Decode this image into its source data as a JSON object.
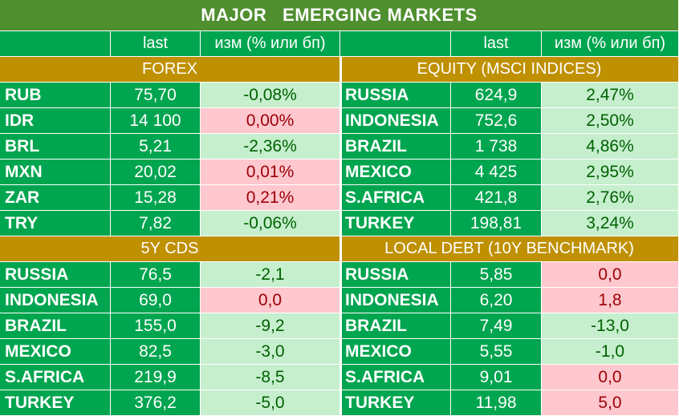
{
  "title": "MAJOR   EMERGING MARKETS",
  "col_headers": {
    "left": {
      "c1": "",
      "c2": "last",
      "c3": "изм (% или бп)"
    },
    "right": {
      "c1": "",
      "c2": "last",
      "c3": "изм (% или бп)"
    }
  },
  "sections": {
    "forex": {
      "title": "FOREX",
      "rows": [
        {
          "name": "RUB",
          "last": "75,70",
          "change": "-0,08%",
          "style": "pos"
        },
        {
          "name": "IDR",
          "last": "14 100",
          "change": "0,00%",
          "style": "neg"
        },
        {
          "name": "BRL",
          "last": "5,21",
          "change": "-2,36%",
          "style": "pos"
        },
        {
          "name": "MXN",
          "last": "20,02",
          "change": "0,01%",
          "style": "neg"
        },
        {
          "name": "ZAR",
          "last": "15,28",
          "change": "0,21%",
          "style": "neg"
        },
        {
          "name": "TRY",
          "last": "7,82",
          "change": "-0,06%",
          "style": "pos"
        }
      ]
    },
    "equity": {
      "title": "EQUITY (MSCI INDICES)",
      "rows": [
        {
          "name": "RUSSIA",
          "last": "624,9",
          "change": "2,47%",
          "style": "pos"
        },
        {
          "name": "INDONESIA",
          "last": "752,6",
          "change": "2,50%",
          "style": "pos"
        },
        {
          "name": "BRAZIL",
          "last": "1 738",
          "change": "4,86%",
          "style": "pos"
        },
        {
          "name": "MEXICO",
          "last": "4 425",
          "change": "2,95%",
          "style": "pos"
        },
        {
          "name": "S.AFRICA",
          "last": "421,8",
          "change": "2,76%",
          "style": "pos"
        },
        {
          "name": "TURKEY",
          "last": "198,81",
          "change": "3,24%",
          "style": "pos"
        }
      ]
    },
    "cds": {
      "title": "5Y CDS",
      "rows": [
        {
          "name": "RUSSIA",
          "last": "76,5",
          "change": "-2,1",
          "style": "pos"
        },
        {
          "name": "INDONESIA",
          "last": "69,0",
          "change": "0,0",
          "style": "neg"
        },
        {
          "name": "BRAZIL",
          "last": "155,0",
          "change": "-9,2",
          "style": "pos"
        },
        {
          "name": "MEXICO",
          "last": "82,5",
          "change": "-3,0",
          "style": "pos"
        },
        {
          "name": "S.AFRICA",
          "last": "219,9",
          "change": "-8,5",
          "style": "pos"
        },
        {
          "name": "TURKEY",
          "last": "376,2",
          "change": "-5,0",
          "style": "pos"
        }
      ]
    },
    "local_debt": {
      "title": "LOCAL DEBT (10Y BENCHMARK)",
      "rows": [
        {
          "name": "RUSSIA",
          "last": "5,85",
          "change": "0,0",
          "style": "neg"
        },
        {
          "name": "INDONESIA",
          "last": "6,20",
          "change": "1,8",
          "style": "neg"
        },
        {
          "name": "BRAZIL",
          "last": "7,49",
          "change": "-13,0",
          "style": "pos"
        },
        {
          "name": "MEXICO",
          "last": "5,55",
          "change": "-1,0",
          "style": "pos"
        },
        {
          "name": "S.AFRICA",
          "last": "9,01",
          "change": "0,0",
          "style": "neg"
        },
        {
          "name": "TURKEY",
          "last": "11,98",
          "change": "5,0",
          "style": "neg"
        }
      ]
    }
  },
  "colors": {
    "title_bg": "#4f8f2f",
    "cell_green": "#00a54f",
    "section_gold": "#bf9000",
    "positive_fill": "#c6efce",
    "positive_text": "#006100",
    "negative_fill": "#ffc7ce",
    "negative_text": "#9c0006"
  }
}
